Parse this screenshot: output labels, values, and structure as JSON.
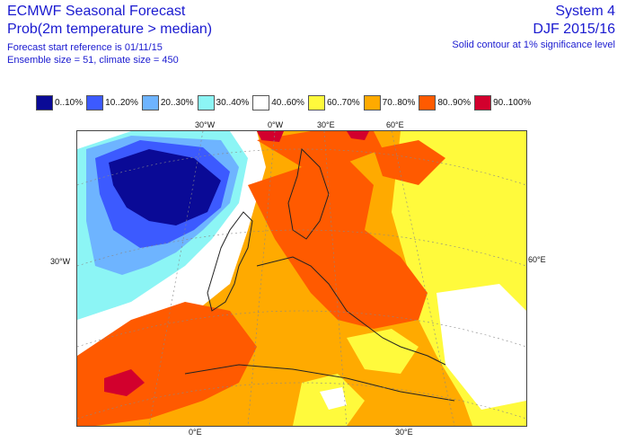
{
  "header": {
    "title": "ECMWF Seasonal Forecast",
    "subtitle": "Prob(2m temperature > median)",
    "forecast_start": "Forecast start reference is 01/11/15",
    "ensemble": "Ensemble size = 51, climate size = 450",
    "system": "System 4",
    "season": "DJF 2015/16",
    "contour_note": "Solid contour at 1% significance level"
  },
  "legend": [
    {
      "label": "0..10%",
      "color": "#0a0a96"
    },
    {
      "label": "10..20%",
      "color": "#3c5aff"
    },
    {
      "label": "20..30%",
      "color": "#6eb4ff"
    },
    {
      "label": "30..40%",
      "color": "#8cf5f5"
    },
    {
      "label": "40..60%",
      "color": "#ffffff"
    },
    {
      "label": "60..70%",
      "color": "#fffa3c"
    },
    {
      "label": "70..80%",
      "color": "#ffaa00"
    },
    {
      "label": "80..90%",
      "color": "#ff5a00"
    },
    {
      "label": "90..100%",
      "color": "#d2002d"
    }
  ],
  "axis_labels": {
    "top_30w": "30°W",
    "top_0w": "0°W",
    "top_30e": "30°E",
    "top_60e": "60°E",
    "left_30w": "30°W",
    "right_60e": "60°E",
    "bottom_0e": "0°E",
    "bottom_30e": "30°E"
  }
}
